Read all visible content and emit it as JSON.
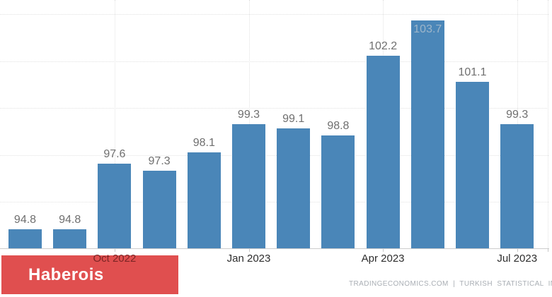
{
  "brand": {
    "label": "Haberois",
    "box_color": "#e04f4f",
    "text_color": "#ffffff"
  },
  "source": {
    "text": "TRADINGECONOMICS.COM  |  TURKISH  STATISTICAL  INSTI",
    "color": "#a9aeb4"
  },
  "colors": {
    "bar": "#4a86b8",
    "value_label": "#6f6f6f",
    "value_label_inside": "rgba(185,198,208,0.75)",
    "axis_label": "#2d2d2d",
    "axis_label_over_watermark": "#7c2525",
    "gridline": "#e2e2e2",
    "axis_line": "#cccccc"
  },
  "chart_data": {
    "type": "bar",
    "values": [
      94.8,
      94.8,
      97.6,
      97.3,
      98.1,
      99.3,
      99.1,
      98.8,
      102.2,
      103.7,
      101.1,
      99.3
    ],
    "value_label_decimals": 1,
    "inside_label_index": 9,
    "x_tick_labels": [
      {
        "text": "Oct 2022",
        "bar_index": 2,
        "over_watermark": true
      },
      {
        "text": "Jan 2023",
        "bar_index": 5,
        "over_watermark": false
      },
      {
        "text": "Apr 2023",
        "bar_index": 8,
        "over_watermark": false
      },
      {
        "text": "Jul 2023",
        "bar_index": 11,
        "over_watermark": false
      }
    ],
    "ylim": [
      94,
      104.6
    ],
    "gridline_step": 2,
    "grid": "dotted",
    "legend": "none",
    "title": ""
  }
}
